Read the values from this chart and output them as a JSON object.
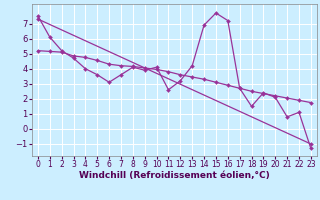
{
  "background_color": "#cceeff",
  "grid_color": "#ffffff",
  "line_color": "#993399",
  "marker_color": "#993399",
  "xlabel": "Windchill (Refroidissement éolien,°C)",
  "xlabel_fontsize": 6.5,
  "tick_fontsize": 5.5,
  "xlim": [
    -0.5,
    23.5
  ],
  "ylim": [
    -1.8,
    8.3
  ],
  "yticks": [
    -1,
    0,
    1,
    2,
    3,
    4,
    5,
    6,
    7
  ],
  "xticks": [
    0,
    1,
    2,
    3,
    4,
    5,
    6,
    7,
    8,
    9,
    10,
    11,
    12,
    13,
    14,
    15,
    16,
    17,
    18,
    19,
    20,
    21,
    22,
    23
  ],
  "series1_x": [
    0,
    1,
    2,
    3,
    4,
    5,
    6,
    7,
    8,
    9,
    10,
    11,
    12,
    13,
    14,
    15,
    16,
    17,
    18,
    19,
    20,
    21,
    22,
    23
  ],
  "series1_y": [
    7.5,
    6.1,
    5.2,
    4.7,
    4.0,
    3.6,
    3.1,
    3.6,
    4.1,
    3.9,
    4.1,
    2.6,
    3.2,
    4.2,
    6.9,
    7.7,
    7.2,
    2.7,
    1.5,
    2.4,
    2.1,
    0.8,
    1.1,
    -1.3
  ],
  "series2_x": [
    0,
    23
  ],
  "series2_y": [
    7.3,
    -1.0
  ],
  "series3_x": [
    0,
    1,
    2,
    3,
    4,
    5,
    6,
    7,
    8,
    9,
    10,
    11,
    12,
    13,
    14,
    15,
    16,
    17,
    18,
    19,
    20,
    21,
    22,
    23
  ],
  "series3_y": [
    5.2,
    5.15,
    5.1,
    4.85,
    4.75,
    4.55,
    4.3,
    4.2,
    4.15,
    4.05,
    3.95,
    3.8,
    3.6,
    3.45,
    3.3,
    3.1,
    2.9,
    2.7,
    2.5,
    2.35,
    2.2,
    2.05,
    1.9,
    1.75
  ]
}
